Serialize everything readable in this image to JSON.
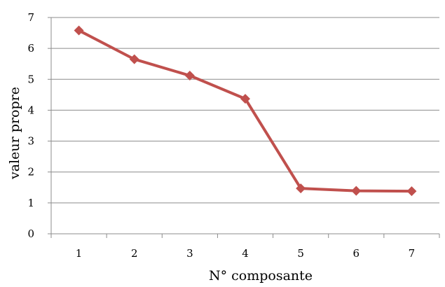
{
  "chart_data": {
    "type": "line",
    "title": "",
    "xlabel": "N° composante",
    "ylabel": "valeur propre",
    "categories": [
      "1",
      "2",
      "3",
      "4",
      "5",
      "6",
      "7"
    ],
    "series": [
      {
        "values": [
          6.58,
          5.65,
          5.12,
          4.37,
          1.47,
          1.39,
          1.38
        ]
      }
    ],
    "ylim": [
      0,
      7
    ],
    "yticks": [
      "0",
      "1",
      "2",
      "3",
      "4",
      "5",
      "6",
      "7"
    ],
    "grid": "horizontal",
    "legend": "none",
    "colors": {
      "series": "#C0504D",
      "grid": "#8C8C8C",
      "axis": "#8C8C8C"
    }
  }
}
